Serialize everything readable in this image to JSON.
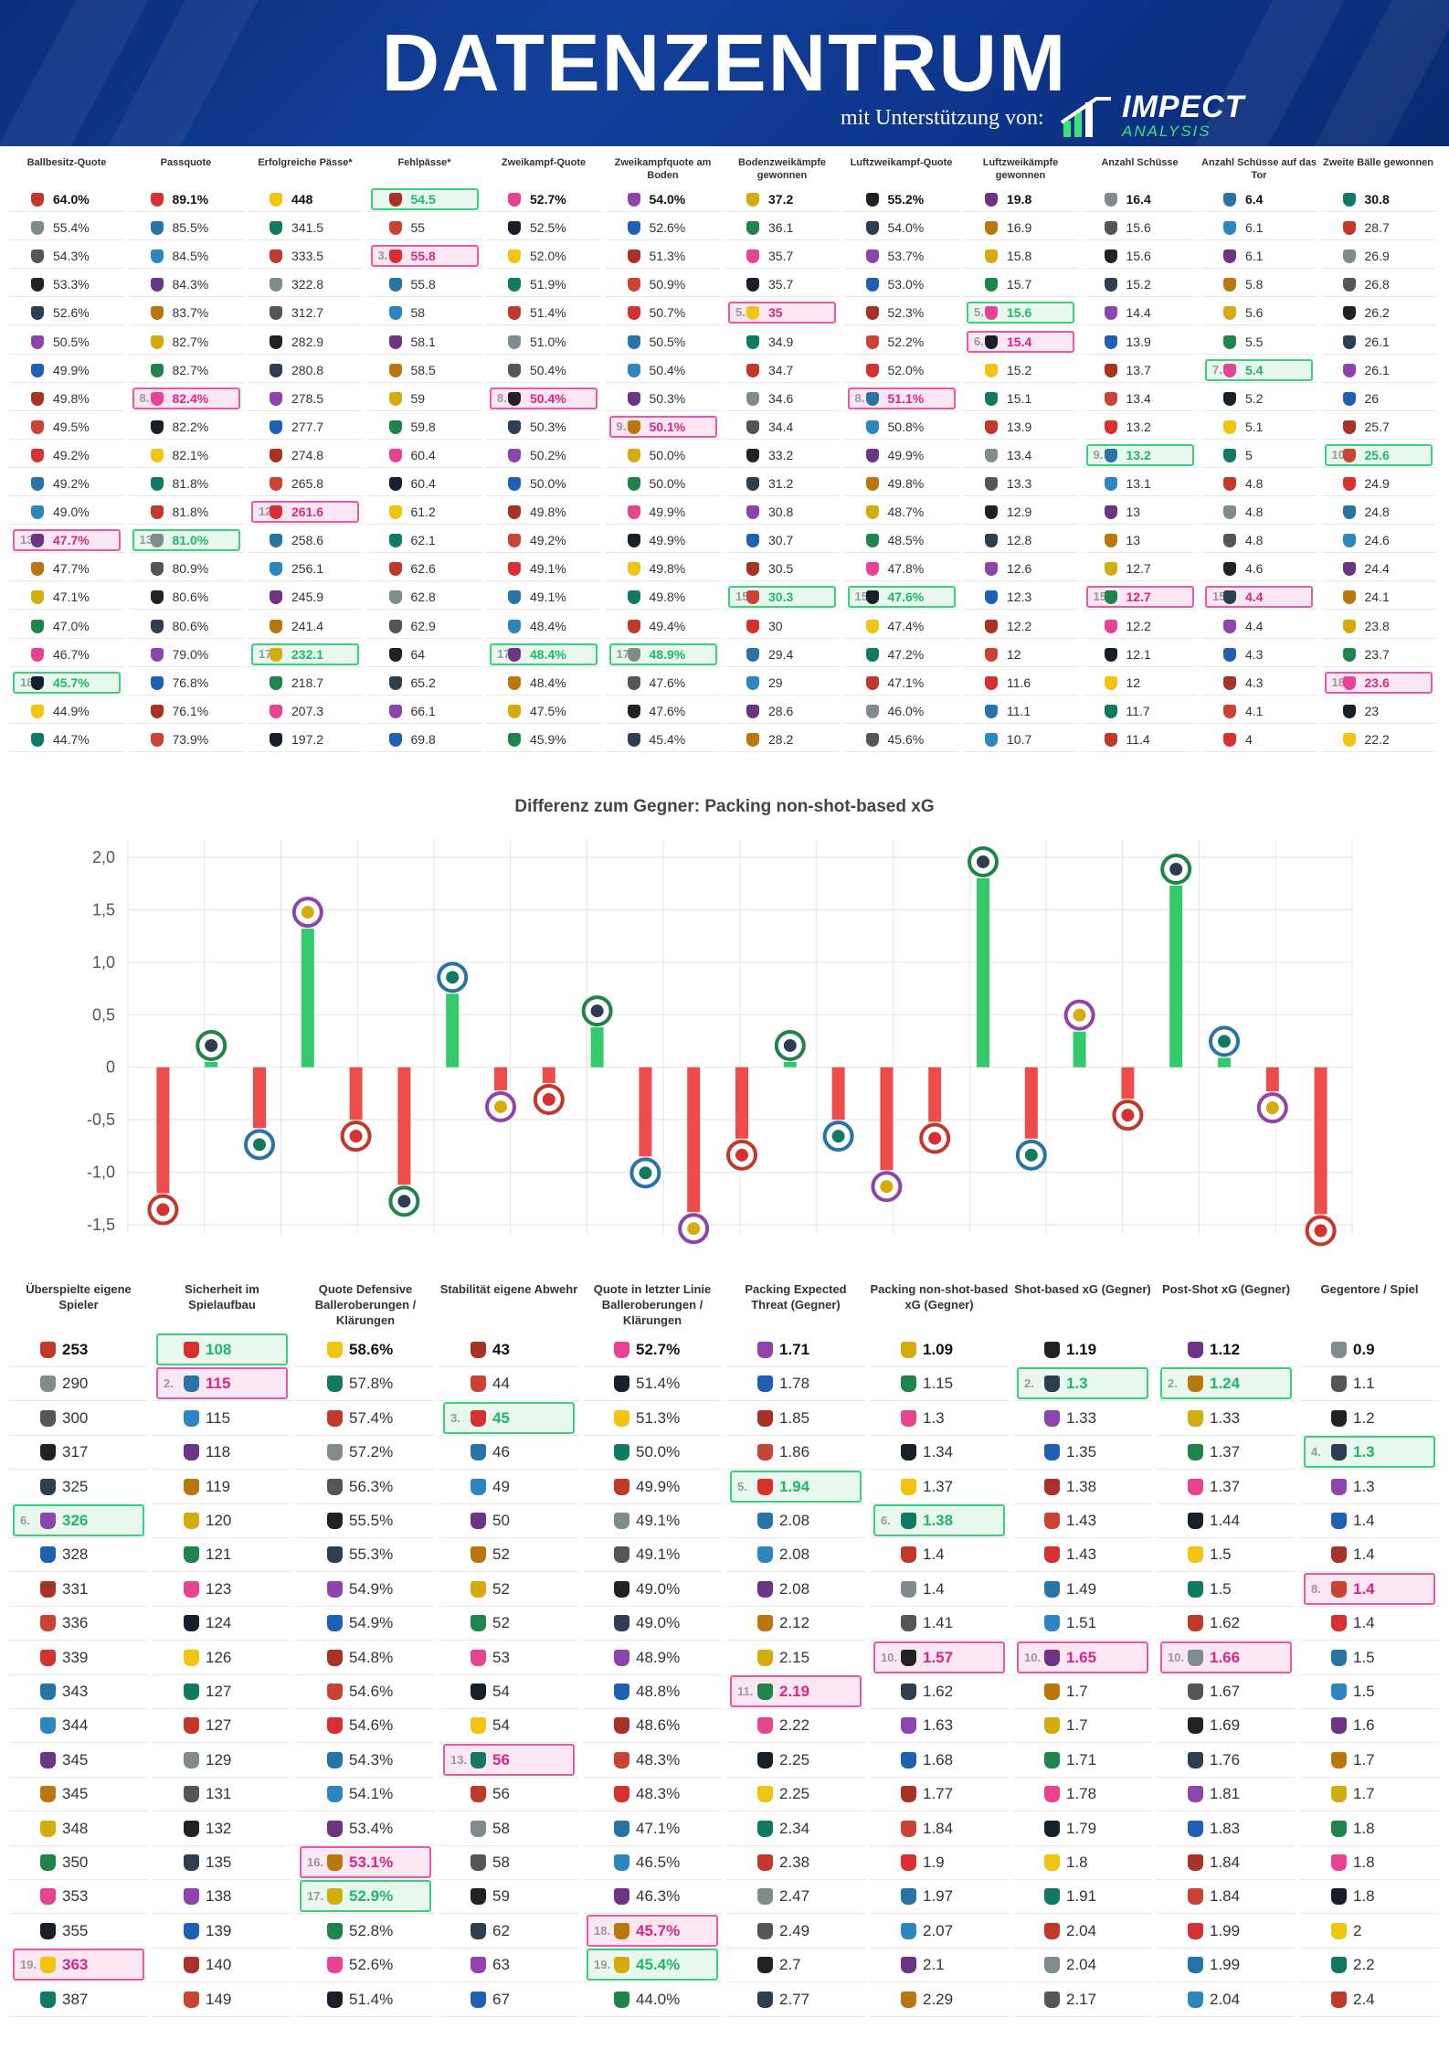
{
  "header": {
    "title": "DATENZENTRUM",
    "subtitle": "mit Unterstützung von:",
    "brand_name": "IMPECT",
    "brand_sub": "ANALYSIS",
    "bg_color": "#0d348a"
  },
  "colors": {
    "bar_positive": "#34c96a",
    "bar_negative": "#ee4b4b",
    "highlight_green": "#3bd07e",
    "highlight_pink": "#e65aa6"
  },
  "club_colors": [
    "#c0392b",
    "#222222",
    "#1f5fb4",
    "#d63031",
    "#6c3483",
    "#1e8449",
    "#f1c40f",
    "#7f8c8d",
    "#2c3e50",
    "#a93226",
    "#2874a6",
    "#b9770e",
    "#e84393",
    "#117a65",
    "#555555",
    "#8e44ad",
    "#cb4335",
    "#2e86c1",
    "#d4ac0d",
    "#17202a"
  ],
  "top_table": {
    "columns": [
      {
        "header": "Ballbesitz-Quote",
        "values": [
          "64.0%",
          "55.4%",
          "54.3%",
          "53.3%",
          "52.6%",
          "50.5%",
          "49.9%",
          "49.8%",
          "49.5%",
          "49.2%",
          "49.2%",
          "49.0%",
          "47.7%",
          "47.7%",
          "47.1%",
          "47.0%",
          "46.7%",
          "45.7%",
          "44.9%",
          "44.7%"
        ],
        "highlights": [
          {
            "row": 12,
            "type": "pink",
            "rank": "13."
          },
          {
            "row": 17,
            "type": "green",
            "rank": "18."
          }
        ]
      },
      {
        "header": "Passquote",
        "values": [
          "89.1%",
          "85.5%",
          "84.5%",
          "84.3%",
          "83.7%",
          "82.7%",
          "82.7%",
          "82.4%",
          "82.2%",
          "82.1%",
          "81.8%",
          "81.8%",
          "81.0%",
          "80.9%",
          "80.6%",
          "80.6%",
          "79.0%",
          "76.8%",
          "76.1%",
          "73.9%"
        ],
        "highlights": [
          {
            "row": 7,
            "type": "pink",
            "rank": "8."
          },
          {
            "row": 12,
            "type": "green",
            "rank": "13."
          }
        ]
      },
      {
        "header": "Erfolgreiche Pässe*",
        "values": [
          "448",
          "341.5",
          "333.5",
          "322.8",
          "312.7",
          "282.9",
          "280.8",
          "278.5",
          "277.7",
          "274.8",
          "265.8",
          "261.6",
          "258.6",
          "256.1",
          "245.9",
          "241.4",
          "232.1",
          "218.7",
          "207.3",
          "197.2"
        ],
        "highlights": [
          {
            "row": 11,
            "type": "pink",
            "rank": "12."
          },
          {
            "row": 16,
            "type": "green",
            "rank": "17."
          }
        ]
      },
      {
        "header": "Fehlpässe*",
        "values": [
          "54.5",
          "55",
          "55.8",
          "55.8",
          "58",
          "58.1",
          "58.5",
          "59",
          "59.8",
          "60.4",
          "60.4",
          "61.2",
          "62.1",
          "62.6",
          "62.8",
          "62.9",
          "64",
          "65.2",
          "66.1",
          "69.8"
        ],
        "highlights": [
          {
            "row": 0,
            "type": "green",
            "rank": ""
          },
          {
            "row": 2,
            "type": "pink",
            "rank": "3."
          }
        ]
      },
      {
        "header": "Zweikampf-Quote",
        "values": [
          "52.7%",
          "52.5%",
          "52.0%",
          "51.9%",
          "51.4%",
          "51.0%",
          "50.4%",
          "50.4%",
          "50.3%",
          "50.2%",
          "50.0%",
          "49.8%",
          "49.2%",
          "49.1%",
          "49.1%",
          "48.4%",
          "48.4%",
          "48.4%",
          "47.5%",
          "45.9%"
        ],
        "highlights": [
          {
            "row": 7,
            "type": "pink",
            "rank": "8."
          },
          {
            "row": 16,
            "type": "green",
            "rank": "17."
          }
        ]
      },
      {
        "header": "Zweikampfquote am Boden",
        "values": [
          "54.0%",
          "52.6%",
          "51.3%",
          "50.9%",
          "50.7%",
          "50.5%",
          "50.4%",
          "50.3%",
          "50.1%",
          "50.0%",
          "50.0%",
          "49.9%",
          "49.9%",
          "49.8%",
          "49.8%",
          "49.4%",
          "48.9%",
          "47.6%",
          "47.6%",
          "45.4%"
        ],
        "highlights": [
          {
            "row": 8,
            "type": "pink",
            "rank": "9."
          },
          {
            "row": 16,
            "type": "green",
            "rank": "17."
          }
        ]
      },
      {
        "header": "Bodenzweikämpfe gewonnen",
        "values": [
          "37.2",
          "36.1",
          "35.7",
          "35.7",
          "35",
          "34.9",
          "34.7",
          "34.6",
          "34.4",
          "33.2",
          "31.2",
          "30.8",
          "30.7",
          "30.5",
          "30.3",
          "30",
          "29.4",
          "29",
          "28.6",
          "28.2"
        ],
        "highlights": [
          {
            "row": 4,
            "type": "pink",
            "rank": "5."
          },
          {
            "row": 14,
            "type": "green",
            "rank": "15."
          }
        ]
      },
      {
        "header": "Luftzweikampf-Quote",
        "values": [
          "55.2%",
          "54.0%",
          "53.7%",
          "53.0%",
          "52.3%",
          "52.2%",
          "52.0%",
          "51.1%",
          "50.8%",
          "49.9%",
          "49.8%",
          "48.7%",
          "48.5%",
          "47.8%",
          "47.6%",
          "47.4%",
          "47.2%",
          "47.1%",
          "46.0%",
          "45.6%"
        ],
        "highlights": [
          {
            "row": 7,
            "type": "pink",
            "rank": "8."
          },
          {
            "row": 14,
            "type": "green",
            "rank": "15."
          }
        ]
      },
      {
        "header": "Luftzweikämpfe gewonnen",
        "values": [
          "19.8",
          "16.9",
          "15.8",
          "15.7",
          "15.6",
          "15.4",
          "15.2",
          "15.1",
          "13.9",
          "13.4",
          "13.3",
          "12.9",
          "12.8",
          "12.6",
          "12.3",
          "12.2",
          "12",
          "11.6",
          "11.1",
          "10.7"
        ],
        "highlights": [
          {
            "row": 4,
            "type": "green",
            "rank": "5."
          },
          {
            "row": 5,
            "type": "pink",
            "rank": "6."
          }
        ]
      },
      {
        "header": "Anzahl Schüsse",
        "values": [
          "16.4",
          "15.6",
          "15.6",
          "15.2",
          "14.4",
          "13.9",
          "13.7",
          "13.4",
          "13.2",
          "13.2",
          "13.1",
          "13",
          "13",
          "12.7",
          "12.7",
          "12.2",
          "12.1",
          "12",
          "11.7",
          "11.4"
        ],
        "highlights": [
          {
            "row": 9,
            "type": "green",
            "rank": "9."
          },
          {
            "row": 14,
            "type": "pink",
            "rank": "15."
          }
        ]
      },
      {
        "header": "Anzahl Schüsse auf das Tor",
        "values": [
          "6.4",
          "6.1",
          "6.1",
          "5.8",
          "5.6",
          "5.5",
          "5.4",
          "5.2",
          "5.1",
          "5",
          "4.8",
          "4.8",
          "4.8",
          "4.6",
          "4.4",
          "4.4",
          "4.3",
          "4.3",
          "4.1",
          "4"
        ],
        "highlights": [
          {
            "row": 6,
            "type": "green",
            "rank": "7."
          },
          {
            "row": 14,
            "type": "pink",
            "rank": "15."
          }
        ]
      },
      {
        "header": "Zweite Bälle gewonnen",
        "values": [
          "30.8",
          "28.7",
          "26.9",
          "26.8",
          "26.2",
          "26.1",
          "26.1",
          "26",
          "25.7",
          "25.6",
          "24.9",
          "24.8",
          "24.6",
          "24.4",
          "24.1",
          "23.8",
          "23.7",
          "23.6",
          "23",
          "22.2"
        ],
        "highlights": [
          {
            "row": 9,
            "type": "green",
            "rank": "10."
          },
          {
            "row": 17,
            "type": "pink",
            "rank": "18."
          }
        ]
      }
    ]
  },
  "chart_data": {
    "type": "bar",
    "title": "Differenz zum Gegner: Packing non-shot-based xG",
    "ylim": [
      -1.5,
      2.0
    ],
    "yticks": [
      "2,0",
      "1,5",
      "1,0",
      "0,5",
      "0",
      "-0,5",
      "-1,0",
      "-1,5"
    ],
    "ytick_values": [
      2.0,
      1.5,
      1.0,
      0.5,
      0,
      -0.5,
      -1.0,
      -1.5
    ],
    "values": [
      -1.2,
      0.05,
      -0.58,
      1.32,
      -0.5,
      -1.12,
      0.7,
      -0.22,
      -0.15,
      0.38,
      -0.85,
      -1.38,
      -0.68,
      0.05,
      -0.5,
      -0.98,
      -0.52,
      1.8,
      -0.68,
      0.34,
      -0.3,
      1.73,
      0.09,
      -0.23,
      -1.4
    ],
    "xlabel": "",
    "ylabel": "",
    "grid": true
  },
  "bottom_table": {
    "columns": [
      {
        "header": "Überspielte eigene Spieler",
        "values": [
          "253",
          "290",
          "300",
          "317",
          "325",
          "326",
          "328",
          "331",
          "336",
          "339",
          "343",
          "344",
          "345",
          "345",
          "348",
          "350",
          "353",
          "355",
          "363",
          "387"
        ],
        "highlights": [
          {
            "row": 5,
            "type": "green",
            "rank": "6."
          },
          {
            "row": 18,
            "type": "pink",
            "rank": "19."
          }
        ]
      },
      {
        "header": "Sicherheit im Spielaufbau",
        "values": [
          "108",
          "115",
          "115",
          "118",
          "119",
          "120",
          "121",
          "123",
          "124",
          "126",
          "127",
          "127",
          "129",
          "131",
          "132",
          "135",
          "138",
          "139",
          "140",
          "149"
        ],
        "highlights": [
          {
            "row": 0,
            "type": "green",
            "rank": ""
          },
          {
            "row": 1,
            "type": "pink",
            "rank": "2."
          }
        ]
      },
      {
        "header": "Quote Defensive Balleroberungen / Klärungen",
        "values": [
          "58.6%",
          "57.8%",
          "57.4%",
          "57.2%",
          "56.3%",
          "55.5%",
          "55.3%",
          "54.9%",
          "54.9%",
          "54.8%",
          "54.6%",
          "54.6%",
          "54.3%",
          "54.1%",
          "53.4%",
          "53.1%",
          "52.9%",
          "52.8%",
          "52.6%",
          "51.4%"
        ],
        "highlights": [
          {
            "row": 15,
            "type": "pink",
            "rank": "16."
          },
          {
            "row": 16,
            "type": "green",
            "rank": "17."
          }
        ]
      },
      {
        "header": "Stabilität eigene Abwehr",
        "values": [
          "43",
          "44",
          "45",
          "46",
          "49",
          "50",
          "52",
          "52",
          "52",
          "53",
          "54",
          "54",
          "56",
          "56",
          "58",
          "58",
          "59",
          "62",
          "63",
          "67"
        ],
        "highlights": [
          {
            "row": 2,
            "type": "green",
            "rank": "3."
          },
          {
            "row": 12,
            "type": "pink",
            "rank": "13."
          }
        ]
      },
      {
        "header": "Quote in letzter Linie Balleroberungen / Klärungen",
        "values": [
          "52.7%",
          "51.4%",
          "51.3%",
          "50.0%",
          "49.9%",
          "49.1%",
          "49.1%",
          "49.0%",
          "49.0%",
          "48.9%",
          "48.8%",
          "48.6%",
          "48.3%",
          "48.3%",
          "47.1%",
          "46.5%",
          "46.3%",
          "45.7%",
          "45.4%",
          "44.0%"
        ],
        "highlights": [
          {
            "row": 17,
            "type": "pink",
            "rank": "18."
          },
          {
            "row": 18,
            "type": "green",
            "rank": "19."
          }
        ]
      },
      {
        "header": "Packing Expected Threat (Gegner)",
        "values": [
          "1.71",
          "1.78",
          "1.85",
          "1.86",
          "1.94",
          "2.08",
          "2.08",
          "2.08",
          "2.12",
          "2.15",
          "2.19",
          "2.22",
          "2.25",
          "2.25",
          "2.34",
          "2.38",
          "2.47",
          "2.49",
          "2.7",
          "2.77"
        ],
        "highlights": [
          {
            "row": 4,
            "type": "green",
            "rank": "5."
          },
          {
            "row": 10,
            "type": "pink",
            "rank": "11."
          }
        ]
      },
      {
        "header": "Packing non-shot-based xG (Gegner)",
        "values": [
          "1.09",
          "1.15",
          "1.3",
          "1.34",
          "1.37",
          "1.38",
          "1.4",
          "1.4",
          "1.41",
          "1.57",
          "1.62",
          "1.63",
          "1.68",
          "1.77",
          "1.84",
          "1.9",
          "1.97",
          "2.07",
          "2.1",
          "2.29"
        ],
        "highlights": [
          {
            "row": 5,
            "type": "green",
            "rank": "6."
          },
          {
            "row": 9,
            "type": "pink",
            "rank": "10."
          }
        ]
      },
      {
        "header": "Shot-based xG (Gegner)",
        "values": [
          "1.19",
          "1.3",
          "1.33",
          "1.35",
          "1.38",
          "1.43",
          "1.43",
          "1.49",
          "1.51",
          "1.65",
          "1.7",
          "1.7",
          "1.71",
          "1.78",
          "1.79",
          "1.8",
          "1.91",
          "2.04",
          "2.04",
          "2.17"
        ],
        "highlights": [
          {
            "row": 1,
            "type": "green",
            "rank": "2."
          },
          {
            "row": 9,
            "type": "pink",
            "rank": "10."
          }
        ]
      },
      {
        "header": "Post-Shot xG (Gegner)",
        "values": [
          "1.12",
          "1.24",
          "1.33",
          "1.37",
          "1.37",
          "1.44",
          "1.5",
          "1.5",
          "1.62",
          "1.66",
          "1.67",
          "1.69",
          "1.76",
          "1.81",
          "1.83",
          "1.84",
          "1.84",
          "1.99",
          "1.99",
          "2.04"
        ],
        "highlights": [
          {
            "row": 1,
            "type": "green",
            "rank": "2."
          },
          {
            "row": 9,
            "type": "pink",
            "rank": "10."
          }
        ]
      },
      {
        "header": "Gegentore / Spiel",
        "values": [
          "0.9",
          "1.1",
          "1.2",
          "1.3",
          "1.3",
          "1.4",
          "1.4",
          "1.4",
          "1.4",
          "1.5",
          "1.5",
          "1.6",
          "1.7",
          "1.7",
          "1.8",
          "1.8",
          "1.8",
          "2",
          "2.2",
          "2.4"
        ],
        "highlights": [
          {
            "row": 3,
            "type": "green",
            "rank": "4."
          },
          {
            "row": 7,
            "type": "pink",
            "rank": "8."
          }
        ]
      }
    ]
  }
}
